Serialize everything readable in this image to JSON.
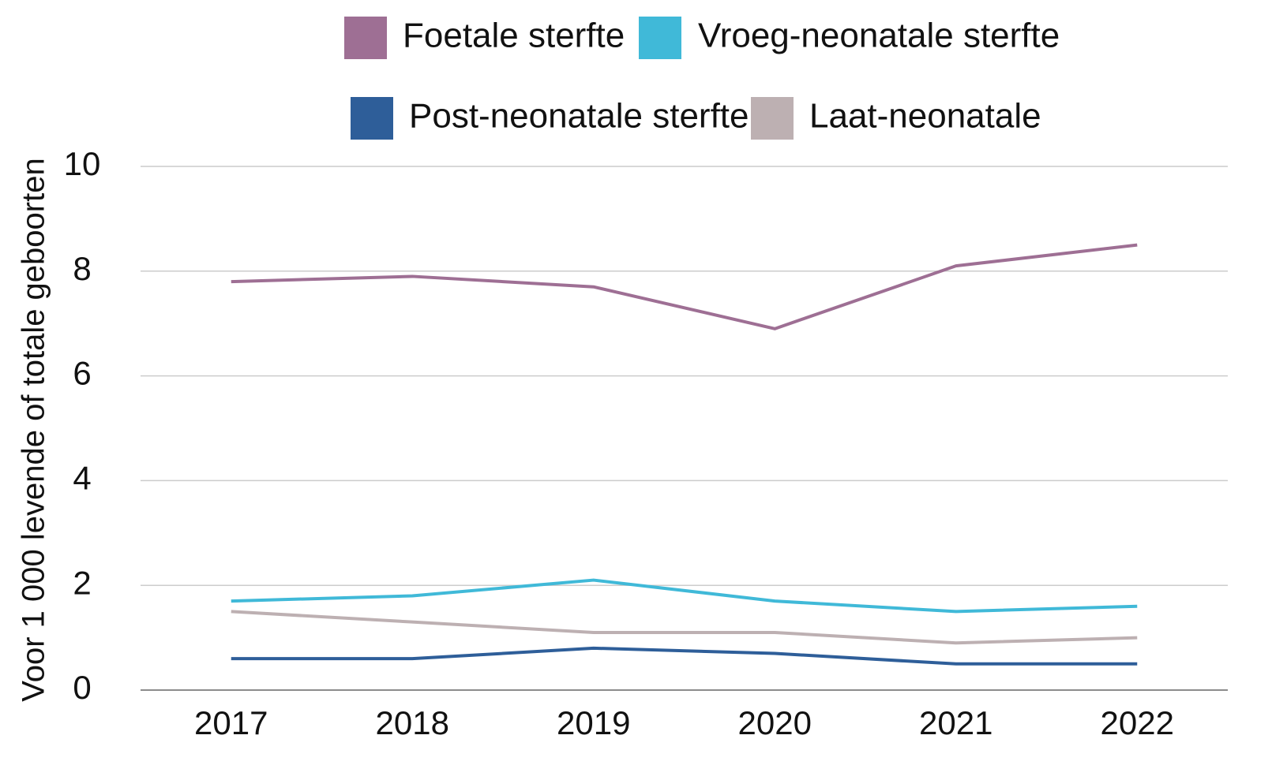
{
  "chart_data": {
    "type": "line",
    "y_label": "Voor 1 000 levende of totale geboorten",
    "categories": [
      "2017",
      "2018",
      "2019",
      "2020",
      "2021",
      "2022"
    ],
    "series": [
      {
        "name": "Foetale sterfte",
        "color": "#9e6f94",
        "values": [
          7.8,
          7.9,
          7.7,
          6.9,
          8.1,
          8.5
        ]
      },
      {
        "name": "Vroeg-neonatale sterfte",
        "color": "#40b9d8",
        "values": [
          1.7,
          1.8,
          2.1,
          1.7,
          1.5,
          1.6
        ]
      },
      {
        "name": "Post-neonatale sterfte",
        "color": "#2e5e99",
        "values": [
          0.6,
          0.6,
          0.8,
          0.7,
          0.5,
          0.5
        ]
      },
      {
        "name": "Laat-neonatale",
        "color": "#bdb0b2",
        "values": [
          1.5,
          1.3,
          1.1,
          1.1,
          0.9,
          1.0
        ]
      }
    ],
    "ylim": [
      0,
      10
    ],
    "yticks": [
      0,
      2,
      4,
      6,
      8,
      10
    ],
    "grid": true,
    "legend": "top"
  }
}
